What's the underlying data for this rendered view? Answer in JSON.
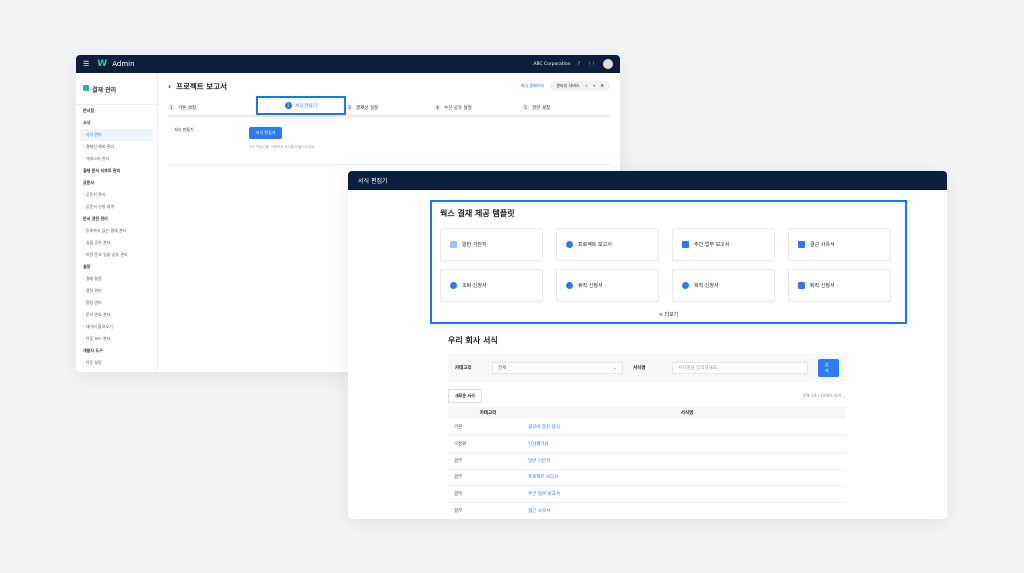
{
  "back": {
    "app": "Admin",
    "company": "ABC Corporation",
    "sidebar_title": "결재 관리",
    "sidebar": [
      {
        "t": "g",
        "label": "문서함"
      },
      {
        "t": "g",
        "label": "서식"
      },
      {
        "t": "a",
        "label": "서식 관리"
      },
      {
        "t": "s",
        "label": "결재선 예외 관리"
      },
      {
        "t": "s",
        "label": "카테고리 관리"
      },
      {
        "t": "g",
        "label": "결재 문서 리포트 관리"
      },
      {
        "t": "g",
        "label": "공문서"
      },
      {
        "t": "s",
        "label": "공문서 관리"
      },
      {
        "t": "s",
        "label": "공문서 신청 내역"
      },
      {
        "t": "g",
        "label": "문서 권한 관리"
      },
      {
        "t": "s",
        "label": "등록하지 않은 결재 관리"
      },
      {
        "t": "s",
        "label": "일괄 공유 관리"
      },
      {
        "t": "s",
        "label": "이관 문서 일괄 공유 관리"
      },
      {
        "t": "g",
        "label": "설정"
      },
      {
        "t": "s",
        "label": "결재 설정"
      },
      {
        "t": "s",
        "label": "명칭 관리"
      },
      {
        "t": "s",
        "label": "알림 관리"
      },
      {
        "t": "s",
        "label": "문서 번호 관리"
      },
      {
        "t": "s",
        "label": "데이터 불러오기"
      },
      {
        "t": "s",
        "label": "연동 코드 관리"
      },
      {
        "t": "g",
        "label": "개발자 도구"
      },
      {
        "t": "s",
        "label": "연동 설정"
      }
    ],
    "page_title": "프로젝트 보고서",
    "home_link": "회사 홈페이지",
    "service_pill": "관리자 서비스",
    "steps": [
      {
        "n": "1",
        "label": "기본 설정"
      },
      {
        "n": "2",
        "label": "서식 만들기"
      },
      {
        "n": "3",
        "label": "결재선 설정"
      },
      {
        "n": "4",
        "label": "수신·공유 설정"
      },
      {
        "n": "5",
        "label": "권한 설정"
      }
    ],
    "form_label": "서식 만들기",
    "editor_button": "서식 편집기",
    "hint": "서식 편집기를 사용해서 서식을 만들어주세요."
  },
  "front": {
    "title": "서식 편집기",
    "templates_title": "웍스 결재 제공 템플릿",
    "templates": [
      {
        "label": "일반 기안지",
        "icon": "document-icon"
      },
      {
        "label": "프로젝트 보고서",
        "icon": "pie-icon"
      },
      {
        "label": "주간 업무 보고서",
        "icon": "calendar-icon"
      },
      {
        "label": "결근 사유서",
        "icon": "absence-icon"
      },
      {
        "label": "조퇴 신청서",
        "icon": "clock-icon"
      },
      {
        "label": "휴직 신청서",
        "icon": "pause-icon"
      },
      {
        "label": "복직 신청서",
        "icon": "return-icon"
      },
      {
        "label": "퇴직 신청서",
        "icon": "exit-icon"
      }
    ],
    "more": "더보기",
    "company_title": "우리 회사 서식",
    "category_label": "카테고리",
    "category_value": "전체",
    "name_label": "서식명",
    "name_placeholder": "서식명을 입력하세요.",
    "search_button": "검색",
    "new_button": "새로운 서식",
    "count": "전체 14 / 10개씩 보기",
    "columns": [
      "카테고리",
      "서식명"
    ],
    "rows": [
      [
        "기본",
        "광고비 증진 양식"
      ],
      [
        "구성원",
        "인사평가표"
      ],
      [
        "업무",
        "일반 기안지"
      ],
      [
        "업무",
        "프로젝트 보고서"
      ],
      [
        "업무",
        "주간 업무 보고서"
      ],
      [
        "업무",
        "결근 사유서"
      ]
    ]
  },
  "colors": {
    "accent": "#1a73f0",
    "header": "#0c1e3e"
  }
}
